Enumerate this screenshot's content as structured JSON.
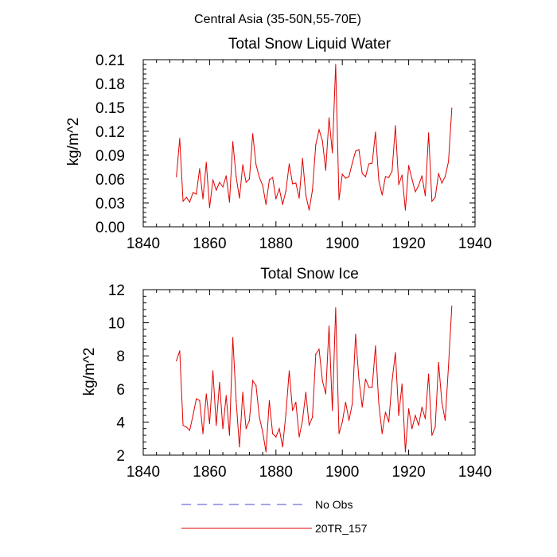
{
  "figure": {
    "title": "Central Asia (35-50N,55-70E)"
  },
  "legend": {
    "items": [
      {
        "label": "No Obs",
        "color": "#4a4ad0",
        "style": "dashed"
      },
      {
        "label": "20TR_157",
        "color": "#e00000",
        "style": "solid"
      }
    ]
  },
  "chart_data": [
    {
      "type": "line",
      "title": "Total Snow Liquid Water",
      "xlabel": "",
      "ylabel": "kg/m^2",
      "xlim": [
        1840,
        1940
      ],
      "ylim": [
        0,
        0.21
      ],
      "xticks": [
        1840,
        1860,
        1880,
        1900,
        1920,
        1940
      ],
      "yticks": [
        "0.00",
        "0.03",
        "0.06",
        "0.09",
        "0.12",
        "0.15",
        "0.18",
        "0.21"
      ],
      "series": [
        {
          "name": "20TR_157",
          "color": "#e00000",
          "x_start": 1850,
          "values": [
            0.063,
            0.111,
            0.032,
            0.037,
            0.031,
            0.043,
            0.041,
            0.073,
            0.035,
            0.081,
            0.024,
            0.059,
            0.046,
            0.056,
            0.05,
            0.064,
            0.031,
            0.107,
            0.063,
            0.036,
            0.078,
            0.056,
            0.06,
            0.117,
            0.078,
            0.062,
            0.052,
            0.028,
            0.059,
            0.062,
            0.035,
            0.048,
            0.028,
            0.045,
            0.079,
            0.054,
            0.055,
            0.036,
            0.086,
            0.04,
            0.021,
            0.046,
            0.103,
            0.122,
            0.108,
            0.071,
            0.137,
            0.093,
            0.204,
            0.034,
            0.066,
            0.061,
            0.063,
            0.08,
            0.095,
            0.097,
            0.067,
            0.063,
            0.079,
            0.08,
            0.119,
            0.058,
            0.04,
            0.063,
            0.062,
            0.07,
            0.127,
            0.053,
            0.065,
            0.021,
            0.077,
            0.06,
            0.044,
            0.052,
            0.064,
            0.039,
            0.118,
            0.032,
            0.037,
            0.067,
            0.055,
            0.063,
            0.082,
            0.149
          ]
        }
      ]
    },
    {
      "type": "line",
      "title": "Total Snow Ice",
      "xlabel": "",
      "ylabel": "kg/m^2",
      "xlim": [
        1840,
        1940
      ],
      "ylim": [
        2,
        12
      ],
      "xticks": [
        1840,
        1860,
        1880,
        1900,
        1920,
        1940
      ],
      "yticks": [
        "2",
        "4",
        "6",
        "8",
        "10",
        "12"
      ],
      "series": [
        {
          "name": "20TR_157",
          "color": "#e00000",
          "x_start": 1850,
          "values": [
            7.7,
            8.3,
            3.8,
            3.7,
            3.5,
            4.4,
            5.4,
            5.3,
            3.3,
            5.7,
            3.9,
            7.1,
            3.8,
            6.4,
            3.6,
            5.6,
            3.2,
            9.1,
            5.3,
            2.5,
            5.8,
            3.6,
            4.1,
            6.5,
            6.2,
            4.3,
            3.4,
            2.2,
            5.3,
            3.3,
            3.1,
            3.6,
            2.5,
            4.5,
            7.1,
            4.7,
            5.2,
            3.1,
            4.1,
            5.8,
            3.8,
            4.3,
            8.1,
            8.4,
            6.5,
            5.7,
            9.8,
            4.7,
            10.9,
            3.3,
            4.0,
            5.2,
            4.1,
            5.1,
            9.3,
            6.6,
            4.9,
            6.6,
            6.1,
            6.1,
            8.6,
            5.1,
            3.3,
            4.6,
            4.0,
            6.5,
            8.2,
            4.4,
            6.3,
            2.2,
            4.8,
            3.6,
            4.4,
            3.8,
            4.9,
            4.2,
            6.9,
            3.2,
            3.7,
            7.6,
            5.2,
            4.1,
            7.4,
            11.0
          ]
        }
      ]
    }
  ]
}
